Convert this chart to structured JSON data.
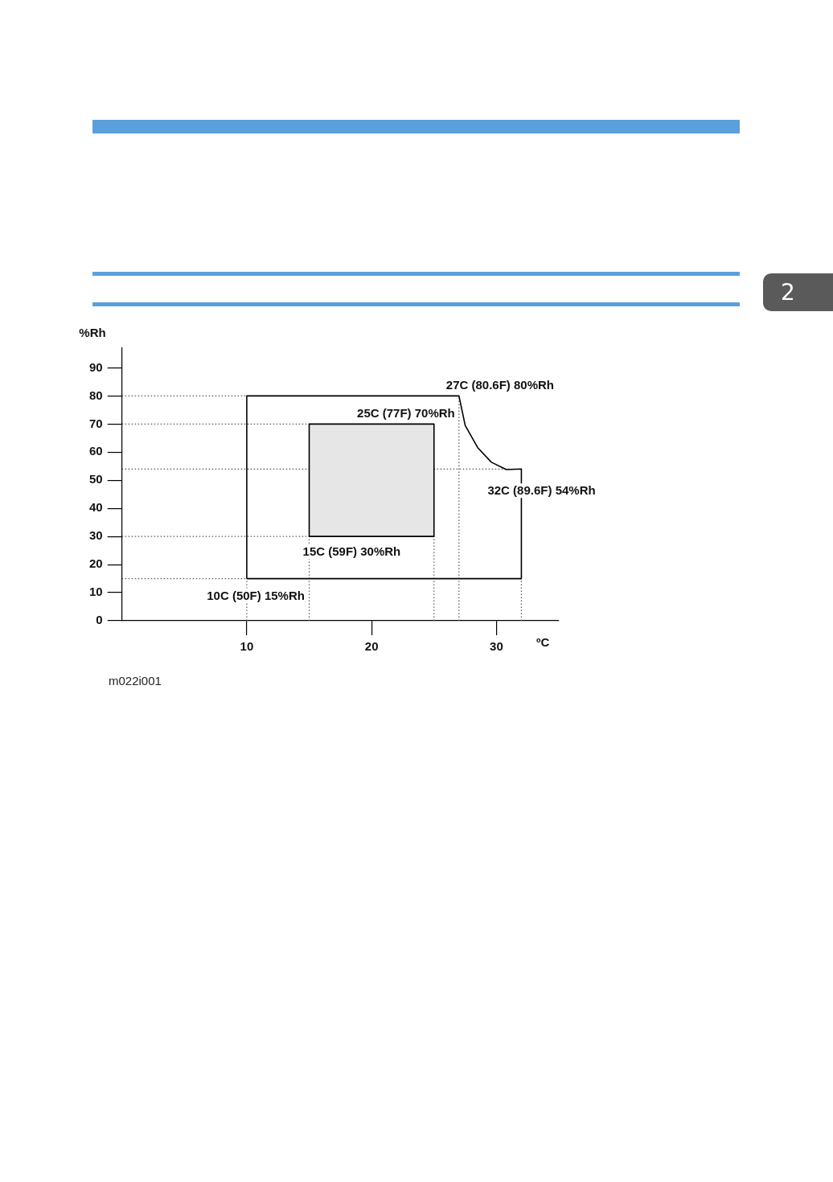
{
  "chart_data": {
    "type": "line",
    "xlabel": "ºC",
    "ylabel": "%Rh",
    "xlim": [
      0,
      35
    ],
    "ylim": [
      0,
      97
    ],
    "xticks": [
      10,
      20,
      30
    ],
    "yticks": [
      0,
      10,
      20,
      30,
      40,
      50,
      60,
      70,
      80,
      90
    ],
    "grid": false,
    "legend": false,
    "marker": "none",
    "series": [
      {
        "type": "area",
        "color": "#e6e6e6",
        "x": [
          15,
          25,
          25,
          15,
          15
        ],
        "values": [
          30,
          30,
          70,
          70,
          30
        ]
      },
      {
        "type": "line",
        "color": "#000000",
        "x": [
          10,
          10,
          27,
          27.5,
          28.5,
          29.6,
          30.8,
          32,
          32
        ],
        "values": [
          15,
          80,
          80,
          69.5,
          61.6,
          56.4,
          53.8,
          54,
          15
        ]
      },
      {
        "type": "line",
        "color": "#000000",
        "x": [
          10,
          32
        ],
        "values": [
          15,
          15
        ]
      },
      {
        "type": "line",
        "color": "#555555",
        "line_style": "dotted",
        "x": [
          0,
          10
        ],
        "values": [
          80,
          80
        ]
      },
      {
        "type": "line",
        "color": "#555555",
        "line_style": "dotted",
        "x": [
          0,
          15
        ],
        "values": [
          70,
          70
        ]
      },
      {
        "type": "line",
        "color": "#555555",
        "line_style": "dotted",
        "x": [
          0,
          32
        ],
        "values": [
          54,
          54
        ]
      },
      {
        "type": "line",
        "color": "#555555",
        "line_style": "dotted",
        "x": [
          0,
          15
        ],
        "values": [
          30,
          30
        ]
      },
      {
        "type": "line",
        "color": "#555555",
        "line_style": "dotted",
        "x": [
          0,
          10
        ],
        "values": [
          15,
          15
        ]
      },
      {
        "type": "line",
        "color": "#555555",
        "line_style": "dotted",
        "x": [
          10,
          10
        ],
        "values": [
          0,
          15
        ]
      },
      {
        "type": "line",
        "color": "#555555",
        "line_style": "dotted",
        "x": [
          15,
          15
        ],
        "values": [
          0,
          30
        ]
      },
      {
        "type": "line",
        "color": "#555555",
        "line_style": "dotted",
        "x": [
          25,
          25
        ],
        "values": [
          0,
          30
        ]
      },
      {
        "type": "line",
        "color": "#555555",
        "line_style": "dotted",
        "x": [
          27,
          27
        ],
        "values": [
          0,
          80
        ]
      },
      {
        "type": "line",
        "color": "#555555",
        "line_style": "dotted",
        "x": [
          32,
          32
        ],
        "values": [
          0,
          15
        ]
      }
    ],
    "annotations": [
      {
        "text": "27C (80.6F) 80%Rh",
        "x": 27,
        "y": 80
      },
      {
        "text": "25C (77F) 70%Rh",
        "x": 25,
        "y": 70
      },
      {
        "text": "32C (89.6F) 54%Rh",
        "x": 32,
        "y": 54
      },
      {
        "text": "15C (59F) 30%Rh",
        "x": 15,
        "y": 30
      },
      {
        "text": "10C (50F) 15%Rh",
        "x": 10,
        "y": 15
      },
      "m022i001",
      "2"
    ]
  }
}
